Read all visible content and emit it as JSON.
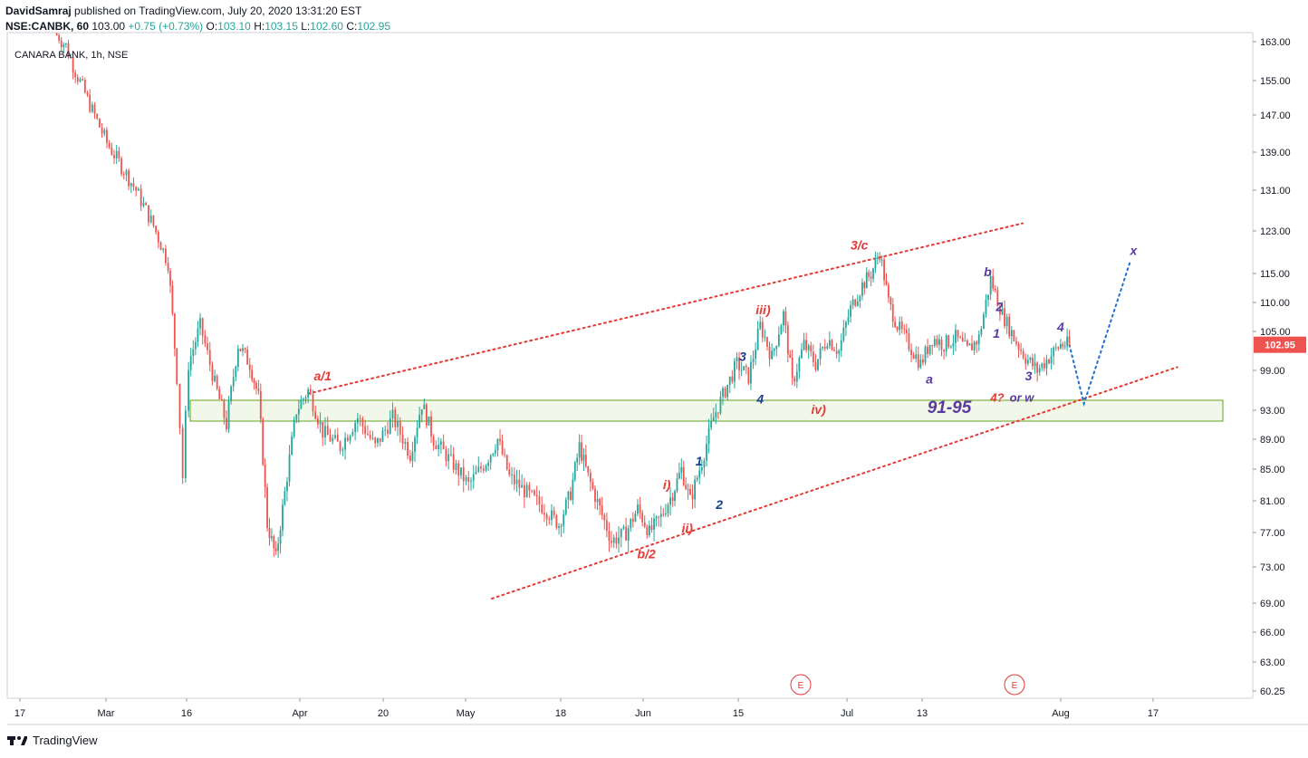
{
  "header": {
    "author": "DavidSamraj",
    "published": "published on TradingView.com, July 20, 2020 13:31:20 EST",
    "symbol": "NSE:CANBK, 60",
    "last": "103.00",
    "change": "+0.75 (+0.73%)",
    "o_label": "O:",
    "o": "103.10",
    "h_label": "H:",
    "h": "103.15",
    "l_label": "L:",
    "l": "102.60",
    "c_label": "C:",
    "c": "102.95"
  },
  "chart_title": "CANARA BANK, 1h, NSE",
  "footer_brand": "TradingView",
  "colors": {
    "up": "#26a69a",
    "down": "#ef5350",
    "wave_red": "#e53935",
    "wave_blue": "#1a3f8f",
    "wave_purple": "#5b3aa0",
    "zone_border": "#7cb342",
    "zone_fill": "#f1f8e9",
    "price_tag": "#ef5350"
  },
  "chart_data": {
    "type": "candlestick",
    "title": "CANARA BANK, 1h, NSE",
    "y_ticks": [
      "163.00",
      "155.00",
      "147.00",
      "139.00",
      "131.00",
      "123.00",
      "115.00",
      "110.00",
      "105.00",
      "99.00",
      "93.00",
      "89.00",
      "85.00",
      "81.00",
      "77.00",
      "73.00",
      "69.00",
      "66.00",
      "63.00",
      "60.25"
    ],
    "x_ticks": [
      "17",
      "Mar",
      "16",
      "Apr",
      "20",
      "May",
      "18",
      "Jun",
      "15",
      "Jul",
      "13",
      "Aug",
      "17"
    ],
    "last_price": "102.95",
    "zone_label": "91-95",
    "zone_range": [
      91.5,
      94.5
    ],
    "price_path": [
      [
        0,
        166
      ],
      [
        0.4,
        162
      ],
      [
        0.8,
        156
      ],
      [
        1.3,
        148
      ],
      [
        1.8,
        141
      ],
      [
        2.3,
        136
      ],
      [
        2.8,
        131
      ],
      [
        3.4,
        124
      ],
      [
        3.9,
        117
      ],
      [
        4.2,
        98
      ],
      [
        4.4,
        84
      ],
      [
        4.6,
        100
      ],
      [
        5.0,
        106
      ],
      [
        5.5,
        97
      ],
      [
        5.9,
        91
      ],
      [
        6.3,
        103
      ],
      [
        6.7,
        100
      ],
      [
        7.0,
        95
      ],
      [
        7.3,
        78
      ],
      [
        7.6,
        74
      ],
      [
        7.9,
        82
      ],
      [
        8.3,
        93
      ],
      [
        8.7,
        96
      ],
      [
        9.2,
        90
      ],
      [
        9.8,
        88
      ],
      [
        10.4,
        92
      ],
      [
        11.0,
        88
      ],
      [
        11.6,
        92
      ],
      [
        12.2,
        87
      ],
      [
        12.6,
        94
      ],
      [
        13.0,
        89
      ],
      [
        13.6,
        86
      ],
      [
        14.2,
        83
      ],
      [
        14.8,
        86
      ],
      [
        15.2,
        89
      ],
      [
        15.6,
        84
      ],
      [
        16.2,
        82
      ],
      [
        16.8,
        80
      ],
      [
        17.3,
        78
      ],
      [
        17.7,
        82
      ],
      [
        18.0,
        88
      ],
      [
        18.3,
        84
      ],
      [
        18.7,
        80
      ],
      [
        19.1,
        76
      ],
      [
        19.6,
        77
      ],
      [
        20.0,
        80
      ],
      [
        20.4,
        77
      ],
      [
        20.8,
        79
      ],
      [
        21.2,
        82
      ],
      [
        21.5,
        85
      ],
      [
        21.8,
        81
      ],
      [
        22.2,
        86
      ],
      [
        22.6,
        92
      ],
      [
        23.0,
        96
      ],
      [
        23.4,
        100
      ],
      [
        23.8,
        98
      ],
      [
        24.2,
        106
      ],
      [
        24.6,
        101
      ],
      [
        25.0,
        108
      ],
      [
        25.3,
        97
      ],
      [
        25.7,
        103
      ],
      [
        26.1,
        100
      ],
      [
        26.5,
        104
      ],
      [
        26.9,
        102
      ],
      [
        27.3,
        109
      ],
      [
        27.7,
        113
      ],
      [
        28.0,
        115
      ],
      [
        28.3,
        119
      ],
      [
        28.6,
        110
      ],
      [
        28.9,
        106
      ],
      [
        29.3,
        103
      ],
      [
        29.7,
        100
      ],
      [
        30.1,
        104
      ],
      [
        30.5,
        103
      ],
      [
        30.9,
        104
      ],
      [
        31.3,
        102
      ],
      [
        31.7,
        104
      ],
      [
        32.1,
        114
      ],
      [
        32.5,
        108
      ],
      [
        32.9,
        104
      ],
      [
        33.3,
        101
      ],
      [
        33.7,
        99
      ],
      [
        34.1,
        101
      ],
      [
        34.5,
        103
      ],
      [
        34.8,
        102.95
      ]
    ],
    "projection": [
      [
        34.8,
        102.95
      ],
      [
        35.3,
        94
      ],
      [
        36.9,
        117.5
      ]
    ],
    "channel_upper": [
      [
        8.7,
        95.5
      ],
      [
        33.2,
        124.5
      ]
    ],
    "channel_lower": [
      [
        15.0,
        69.5
      ],
      [
        38.5,
        99.5
      ]
    ],
    "wave_labels": [
      {
        "text": "a/1",
        "x": 9.2,
        "y": 97.5,
        "color": "red"
      },
      {
        "text": "b/2",
        "x": 20.3,
        "y": 74,
        "color": "red"
      },
      {
        "text": "i)",
        "x": 21.0,
        "y": 82.5,
        "color": "red"
      },
      {
        "text": "ii)",
        "x": 21.7,
        "y": 77,
        "color": "red"
      },
      {
        "text": "iii)",
        "x": 24.3,
        "y": 108,
        "color": "red"
      },
      {
        "text": "iv)",
        "x": 26.2,
        "y": 92.5,
        "color": "red"
      },
      {
        "text": "3/c",
        "x": 27.6,
        "y": 119.5,
        "color": "red"
      },
      {
        "text": "1",
        "x": 22.1,
        "y": 85.5,
        "color": "blue"
      },
      {
        "text": "2",
        "x": 22.8,
        "y": 80,
        "color": "blue"
      },
      {
        "text": "3",
        "x": 23.6,
        "y": 100.5,
        "color": "blue"
      },
      {
        "text": "4",
        "x": 24.2,
        "y": 94,
        "color": "blue"
      },
      {
        "text": "a",
        "x": 30.0,
        "y": 97,
        "color": "purple"
      },
      {
        "text": "b",
        "x": 32.0,
        "y": 114.5,
        "color": "purple"
      },
      {
        "text": "1",
        "x": 32.3,
        "y": 104,
        "color": "purple"
      },
      {
        "text": "2",
        "x": 32.4,
        "y": 108.5,
        "color": "purple"
      },
      {
        "text": "3",
        "x": 33.4,
        "y": 97.5,
        "color": "purple"
      },
      {
        "text": "4",
        "x": 34.5,
        "y": 105,
        "color": "purple"
      },
      {
        "text": "x",
        "x": 37.0,
        "y": 118.5,
        "color": "purple"
      }
    ],
    "projection_label_red": "4?",
    "projection_label_purple": "or w",
    "event_markers": [
      "E",
      "E"
    ]
  }
}
